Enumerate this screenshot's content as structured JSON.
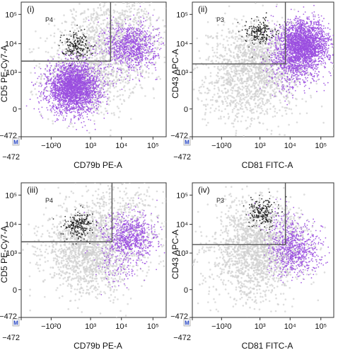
{
  "figure": {
    "palette": {
      "background_cells": "#cfcfcf",
      "population": "#9b4fe0",
      "gated_events": "#1a1a1a",
      "gate_line": "#555555",
      "marker_badge": "#1f3fbf"
    },
    "marker_badge_text": "M"
  },
  "chart_data": [
    {
      "type": "scatter",
      "panel_label": "(i)",
      "xlabel": "CD79b PE-A",
      "ylabel": "CD5 PE-Cy7-A",
      "x_scale": "biexponential",
      "y_scale": "biexponential",
      "x_ticks": [
        "−472",
        "−10²0",
        "10³",
        "10⁴",
        "10⁵"
      ],
      "y_ticks": [
        "−472",
        "0",
        "10³",
        "10⁴",
        "10⁵"
      ],
      "gate": {
        "label": "P4",
        "x_range": [
          -1000,
          4500
        ],
        "y_range": [
          2500,
          260000
        ]
      },
      "series": [
        {
          "color": "background",
          "clusters": [
            {
              "x": 900,
              "y": 900,
              "count": 900
            },
            {
              "x": 15000,
              "y": 15000,
              "count": 500
            },
            {
              "x": 3000,
              "y": 40000,
              "count": 350
            }
          ]
        },
        {
          "color": "population",
          "clusters": [
            {
              "x": 250,
              "y": 250,
              "count": 2600
            },
            {
              "x": 20000,
              "y": 8000,
              "count": 900
            }
          ]
        },
        {
          "color": "gated_events",
          "clusters": [
            {
              "x": 300,
              "y": 9000,
              "count": 180
            }
          ]
        }
      ]
    },
    {
      "type": "scatter",
      "panel_label": "(ii)",
      "xlabel": "CD81 FITC-A",
      "ylabel": "CD43 APC-A",
      "x_scale": "biexponential",
      "y_scale": "biexponential",
      "x_ticks": [
        "−472",
        "−10²0",
        "10³",
        "10⁴",
        "10⁵"
      ],
      "y_ticks": [
        "−472",
        "0",
        "10³",
        "10⁴",
        "10⁵"
      ],
      "gate": {
        "label": "P3",
        "x_range": [
          -1000,
          7000
        ],
        "y_range": [
          2000,
          260000
        ]
      },
      "series": [
        {
          "color": "background",
          "clusters": [
            {
              "x": 1200,
              "y": 2500,
              "count": 1100
            },
            {
              "x": 250,
              "y": 300,
              "count": 600
            }
          ]
        },
        {
          "color": "population",
          "clusters": [
            {
              "x": 28000,
              "y": 9000,
              "count": 2300
            },
            {
              "x": 12000,
              "y": 1500,
              "count": 400
            }
          ]
        },
        {
          "color": "gated_events",
          "clusters": [
            {
              "x": 1000,
              "y": 25000,
              "count": 170
            }
          ]
        }
      ]
    },
    {
      "type": "scatter",
      "panel_label": "(iii)",
      "xlabel": "CD79b PE-A",
      "ylabel": "CD5 PE-Cy7-A",
      "x_scale": "biexponential",
      "y_scale": "biexponential",
      "x_ticks": [
        "−472",
        "−10²0",
        "10³",
        "10⁴",
        "10⁵"
      ],
      "y_ticks": [
        "−472",
        "0",
        "10³",
        "10⁴",
        "10⁵"
      ],
      "gate": {
        "label": "P4",
        "x_range": [
          -1000,
          5000
        ],
        "y_range": [
          2500,
          260000
        ]
      },
      "series": [
        {
          "color": "background",
          "clusters": [
            {
              "x": 900,
              "y": 1200,
              "count": 1500
            },
            {
              "x": 12000,
              "y": 15000,
              "count": 400
            }
          ]
        },
        {
          "color": "population",
          "clusters": [
            {
              "x": 18000,
              "y": 3500,
              "count": 700
            },
            {
              "x": 9000,
              "y": 400,
              "count": 120
            }
          ]
        },
        {
          "color": "gated_events",
          "clusters": [
            {
              "x": 400,
              "y": 9000,
              "count": 200
            }
          ]
        }
      ]
    },
    {
      "type": "scatter",
      "panel_label": "(iv)",
      "xlabel": "CD81 FITC-A",
      "ylabel": "CD43 APC-A",
      "x_scale": "biexponential",
      "y_scale": "biexponential",
      "x_ticks": [
        "−472",
        "−10²0",
        "10³",
        "10⁴",
        "10⁵"
      ],
      "y_ticks": [
        "−472",
        "0",
        "10³",
        "10⁴",
        "10⁵"
      ],
      "gate": {
        "label": "P3",
        "x_range": [
          -1000,
          7000
        ],
        "y_range": [
          2000,
          260000
        ]
      },
      "series": [
        {
          "color": "background",
          "clusters": [
            {
              "x": 1200,
              "y": 2500,
              "count": 1300
            },
            {
              "x": 300,
              "y": 300,
              "count": 500
            }
          ]
        },
        {
          "color": "population",
          "clusters": [
            {
              "x": 15000,
              "y": 1200,
              "count": 650
            },
            {
              "x": 8000,
              "y": 9000,
              "count": 120
            }
          ]
        },
        {
          "color": "gated_events",
          "clusters": [
            {
              "x": 1200,
              "y": 25000,
              "count": 180
            }
          ]
        }
      ]
    }
  ]
}
